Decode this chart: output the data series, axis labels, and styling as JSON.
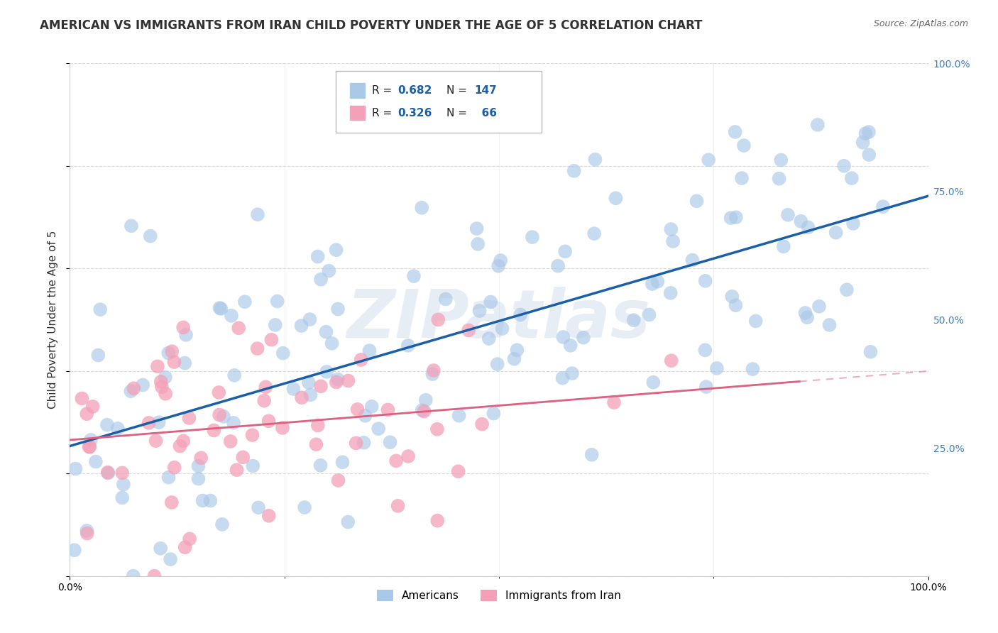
{
  "title": "AMERICAN VS IMMIGRANTS FROM IRAN CHILD POVERTY UNDER THE AGE OF 5 CORRELATION CHART",
  "source": "Source: ZipAtlas.com",
  "ylabel": "Child Poverty Under the Age of 5",
  "legend_bottom": [
    "Americans",
    "Immigrants from Iran"
  ],
  "americans_R": 0.682,
  "americans_N": 147,
  "iran_R": 0.326,
  "iran_N": 66,
  "americans_color": "#aac8e8",
  "iran_color": "#f4a0b8",
  "americans_line_color": "#1a5fa8",
  "iran_line_color": "#e06080",
  "background_color": "#ffffff",
  "grid_color": "#cccccc",
  "watermark": "ZIPatlas",
  "xlim": [
    0,
    1
  ],
  "ylim": [
    0,
    1
  ],
  "title_fontsize": 12,
  "axis_label_fontsize": 11,
  "tick_label_fontsize": 10,
  "ytick_color": "#4080c0"
}
